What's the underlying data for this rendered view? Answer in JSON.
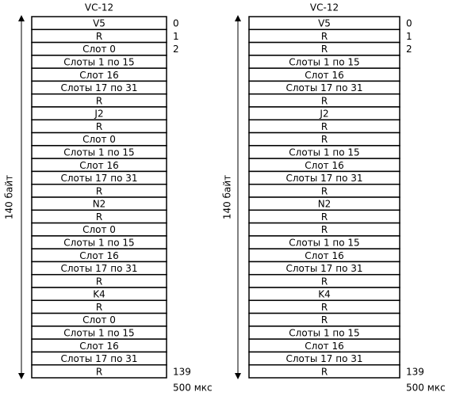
{
  "panels": [
    {
      "title": "VC-12",
      "rows": [
        "V5",
        "R",
        "Слот 0",
        "Слоты 1 по 15",
        "Слот 16",
        "Слоты 17 по 31",
        "R",
        "J2",
        "R",
        "Слот 0",
        "Слоты 1 по 15",
        "Слот 16",
        "Слоты 17 по 31",
        "R",
        "N2",
        "R",
        "Слот 0",
        "Слоты 1 по 15",
        "Слот 16",
        "Слоты 17 по 31",
        "R",
        "K4",
        "R",
        "Слот 0",
        "Слоты 1 по 15",
        "Слот 16",
        "Слоты 17 по 31",
        "R"
      ],
      "top_numbers": [
        "0",
        "1",
        "2"
      ],
      "bottom_number": "139",
      "side_label": "140 байт",
      "bottom_label": "500 мкс"
    },
    {
      "title": "VC-12",
      "rows": [
        "V5",
        "R",
        "R",
        "Слоты 1 по 15",
        "Слот 16",
        "Слоты 17 по 31",
        "R",
        "J2",
        "R",
        "R",
        "Слоты 1 по 15",
        "Слот 16",
        "Слоты 17 по 31",
        "R",
        "N2",
        "R",
        "R",
        "Слоты 1 по 15",
        "Слот 16",
        "Слоты 17 по 31",
        "R",
        "K4",
        "R",
        "R",
        "Слоты 1 по 15",
        "Слот 16",
        "Слоты 17 по 31",
        "R"
      ],
      "top_numbers": [
        "0",
        "1",
        "2"
      ],
      "bottom_number": "139",
      "side_label": "140 байт",
      "bottom_label": "500 мкс"
    }
  ]
}
